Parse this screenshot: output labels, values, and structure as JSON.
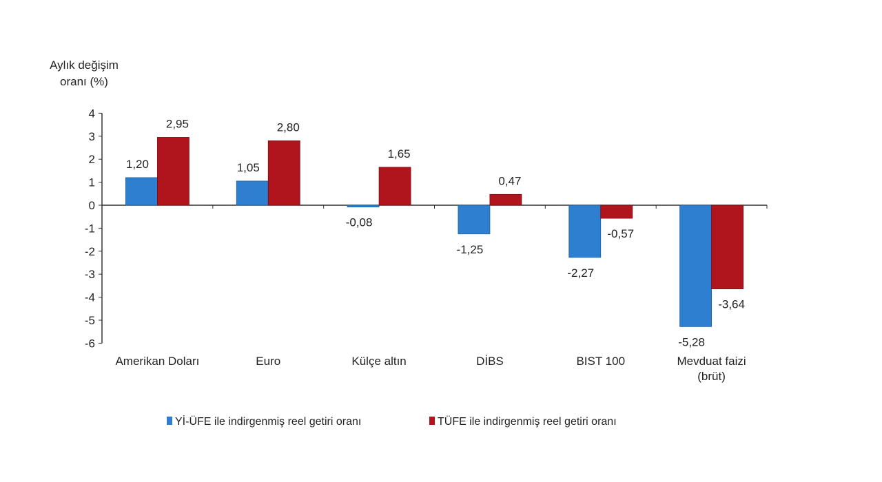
{
  "chart_data": {
    "type": "bar",
    "ylabel_lines": [
      "Aylık değişim",
      "oranı (%)"
    ],
    "ylim": [
      -6,
      4
    ],
    "yticks": [
      4,
      3,
      2,
      1,
      0,
      -1,
      -2,
      -3,
      -4,
      -5,
      -6
    ],
    "categories": [
      [
        "Amerikan Doları"
      ],
      [
        "Euro"
      ],
      [
        "Külçe altın"
      ],
      [
        "DİBS"
      ],
      [
        "BIST 100"
      ],
      [
        "Mevduat faizi",
        "(brüt)"
      ]
    ],
    "series": [
      {
        "name": "Yİ-ÜFE ile indirgenmiş reel getiri oranı",
        "color": "#2f7fd0",
        "values": [
          1.2,
          1.05,
          -0.08,
          -1.25,
          -2.27,
          -5.28
        ],
        "labels": [
          "1,20",
          "1,05",
          "-0,08",
          "-1,25",
          "-2,27",
          "-5,28"
        ]
      },
      {
        "name": "TÜFE ile indirgenmiş reel getiri oranı",
        "color": "#b0151d",
        "values": [
          2.95,
          2.8,
          1.65,
          0.47,
          -0.57,
          -3.64
        ],
        "labels": [
          "2,95",
          "2,80",
          "1,65",
          "0,47",
          "-0,57",
          "-3,64"
        ]
      }
    ],
    "legend_position": "bottom",
    "grid": false
  }
}
